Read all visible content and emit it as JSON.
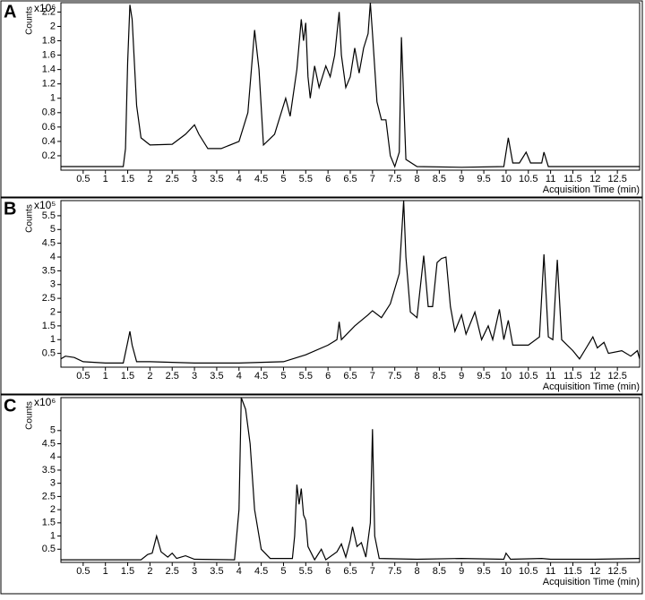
{
  "chart_data": [
    {
      "type": "line",
      "panel_label": "A",
      "ylabel": "Counts",
      "y_multiplier": "x10⁶",
      "xlabel": "Acquisition Time (min)",
      "color": "#000000",
      "grid": false,
      "xlim": [
        0,
        13
      ],
      "xticks": [
        0.5,
        1,
        1.5,
        2,
        2.5,
        3,
        3.5,
        4,
        4.5,
        5,
        5.5,
        6,
        6.5,
        7,
        7.5,
        8,
        8.5,
        9,
        9.5,
        10,
        10.5,
        11,
        11.5,
        12,
        12.5
      ],
      "ylim": [
        0,
        2.33
      ],
      "yticks": [
        0.2,
        0.4,
        0.6,
        0.8,
        1,
        1.2,
        1.4,
        1.6,
        1.8,
        2,
        2.2
      ],
      "x": [
        0,
        1.4,
        1.45,
        1.5,
        1.55,
        1.6,
        1.7,
        1.8,
        2.0,
        2.5,
        2.8,
        3.0,
        3.1,
        3.3,
        3.6,
        4.0,
        4.2,
        4.35,
        4.45,
        4.55,
        4.8,
        5.05,
        5.15,
        5.3,
        5.4,
        5.45,
        5.5,
        5.55,
        5.6,
        5.7,
        5.8,
        5.95,
        6.05,
        6.15,
        6.25,
        6.3,
        6.4,
        6.5,
        6.6,
        6.7,
        6.8,
        6.9,
        6.95,
        7.0,
        7.1,
        7.2,
        7.3,
        7.4,
        7.5,
        7.6,
        7.65,
        7.7,
        7.75,
        8.0,
        9.0,
        9.95,
        10.05,
        10.15,
        10.3,
        10.45,
        10.55,
        10.8,
        10.85,
        10.95,
        12,
        13
      ],
      "values": [
        0.05,
        0.05,
        0.3,
        1.5,
        2.3,
        2.1,
        0.9,
        0.45,
        0.35,
        0.36,
        0.5,
        0.63,
        0.5,
        0.3,
        0.3,
        0.4,
        0.8,
        1.95,
        1.4,
        0.35,
        0.5,
        1.0,
        0.75,
        1.4,
        2.1,
        1.8,
        2.05,
        1.3,
        1.0,
        1.45,
        1.15,
        1.45,
        1.3,
        1.6,
        2.2,
        1.6,
        1.15,
        1.3,
        1.7,
        1.35,
        1.7,
        1.9,
        2.33,
        1.9,
        0.95,
        0.7,
        0.7,
        0.2,
        0.05,
        0.25,
        1.85,
        1.0,
        0.15,
        0.05,
        0.04,
        0.05,
        0.45,
        0.1,
        0.1,
        0.25,
        0.1,
        0.1,
        0.25,
        0.05,
        0.05,
        0.05
      ]
    },
    {
      "type": "line",
      "panel_label": "B",
      "ylabel": "Counts",
      "y_multiplier": "x10⁵",
      "xlabel": "Acquisition Time (min)",
      "color": "#000000",
      "grid": false,
      "xlim": [
        0,
        13
      ],
      "xticks": [
        0.5,
        1,
        1.5,
        2,
        2.5,
        3,
        3.5,
        4,
        4.5,
        5,
        5.5,
        6,
        6.5,
        7,
        7.5,
        8,
        8.5,
        9,
        9.5,
        10,
        10.5,
        11,
        11.5,
        12,
        12.5
      ],
      "ylim": [
        0,
        6.05
      ],
      "yticks": [
        0.5,
        1,
        1.5,
        2,
        2.5,
        3,
        3.5,
        4,
        4.5,
        5,
        5.5
      ],
      "x": [
        0,
        0.1,
        0.3,
        0.5,
        1.0,
        1.4,
        1.5,
        1.55,
        1.6,
        1.7,
        2.0,
        3.0,
        4.0,
        5.0,
        5.5,
        6.0,
        6.2,
        6.25,
        6.3,
        6.6,
        6.9,
        7.0,
        7.2,
        7.4,
        7.6,
        7.7,
        7.75,
        7.85,
        8.0,
        8.15,
        8.25,
        8.35,
        8.45,
        8.55,
        8.65,
        8.75,
        8.85,
        9.0,
        9.1,
        9.3,
        9.45,
        9.6,
        9.7,
        9.85,
        9.95,
        10.05,
        10.15,
        10.5,
        10.75,
        10.85,
        10.95,
        11.05,
        11.15,
        11.25,
        11.5,
        11.65,
        11.8,
        11.95,
        12.05,
        12.2,
        12.3,
        12.6,
        12.8,
        12.95,
        13
      ],
      "values": [
        0.3,
        0.4,
        0.35,
        0.2,
        0.15,
        0.15,
        0.9,
        1.3,
        0.8,
        0.2,
        0.2,
        0.15,
        0.15,
        0.2,
        0.45,
        0.8,
        1.0,
        1.65,
        1.0,
        1.5,
        1.9,
        2.05,
        1.8,
        2.3,
        3.4,
        6.05,
        4.0,
        2.0,
        1.8,
        4.05,
        2.2,
        2.2,
        3.8,
        3.95,
        4.0,
        2.2,
        1.3,
        1.9,
        1.2,
        2.0,
        1.0,
        1.5,
        1.0,
        2.1,
        1.0,
        1.7,
        0.8,
        0.8,
        1.1,
        4.1,
        1.1,
        1.0,
        3.9,
        1.0,
        0.6,
        0.3,
        0.7,
        1.1,
        0.7,
        0.9,
        0.5,
        0.6,
        0.4,
        0.6,
        0.3
      ]
    },
    {
      "type": "line",
      "panel_label": "C",
      "ylabel": "Counts",
      "y_multiplier": "x10⁶",
      "xlabel": "Acquisition Time (min)",
      "color": "#000000",
      "grid": false,
      "xlim": [
        0,
        13
      ],
      "xticks": [
        0.5,
        1,
        1.5,
        2,
        2.5,
        3,
        3.5,
        4,
        4.5,
        5,
        5.5,
        6,
        6.5,
        7,
        7.5,
        8,
        8.5,
        9,
        9.5,
        10,
        10.5,
        11,
        11.5,
        12,
        12.5
      ],
      "ylim": [
        0,
        6.25
      ],
      "yticks": [
        0.5,
        1,
        1.5,
        2,
        2.5,
        3,
        3.5,
        4,
        4.5,
        5
      ],
      "x": [
        0,
        1.8,
        1.95,
        2.05,
        2.15,
        2.25,
        2.4,
        2.5,
        2.6,
        2.8,
        3.0,
        3.9,
        4.0,
        4.05,
        4.15,
        4.25,
        4.35,
        4.5,
        4.7,
        5.2,
        5.25,
        5.3,
        5.35,
        5.4,
        5.45,
        5.5,
        5.55,
        5.7,
        5.85,
        5.95,
        6.2,
        6.3,
        6.4,
        6.5,
        6.55,
        6.65,
        6.75,
        6.85,
        6.95,
        7.0,
        7.05,
        7.15,
        8,
        9,
        9.95,
        10.0,
        10.1,
        10.8,
        11,
        12,
        13
      ],
      "values": [
        0.1,
        0.1,
        0.3,
        0.35,
        1.0,
        0.4,
        0.2,
        0.35,
        0.15,
        0.25,
        0.12,
        0.1,
        2.0,
        6.25,
        5.8,
        4.5,
        2.0,
        0.5,
        0.15,
        0.15,
        1.0,
        2.95,
        2.2,
        2.8,
        1.8,
        1.6,
        0.6,
        0.1,
        0.5,
        0.1,
        0.4,
        0.7,
        0.2,
        0.85,
        1.35,
        0.6,
        0.75,
        0.2,
        1.5,
        5.05,
        1.0,
        0.15,
        0.12,
        0.15,
        0.12,
        0.35,
        0.12,
        0.15,
        0.12,
        0.12,
        0.15
      ]
    }
  ]
}
